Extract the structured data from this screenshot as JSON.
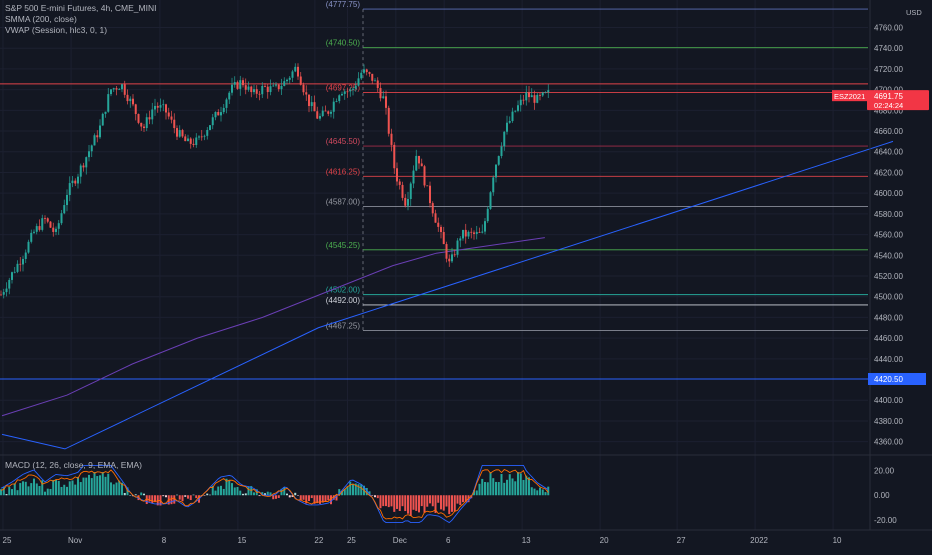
{
  "chart_data": {
    "type": "candlestick",
    "symbol_line": "S&P 500 E-mini Futures, 4h, CME_MINI",
    "indicators": [
      "SMMA (200, close)",
      "VWAP (Session, hlc3, 0, 1)"
    ],
    "currency": "USD",
    "price_axis": {
      "ylim": [
        4350,
        4780
      ],
      "ticks": [
        4760,
        4740,
        4720,
        4700,
        4680,
        4660,
        4640,
        4620,
        4600,
        4580,
        4560,
        4540,
        4520,
        4500,
        4480,
        4460,
        4440,
        4400,
        4380,
        4360
      ],
      "tick_labels": [
        "4760.00",
        "4740.00",
        "4720.00",
        "4700.00",
        "4680.00",
        "4660.00",
        "4640.00",
        "4620.00",
        "4600.00",
        "4580.00",
        "4560.00",
        "4540.00",
        "4520.00",
        "4500.00",
        "4480.00",
        "4460.00",
        "4440.00",
        "4400.00",
        "4380.00",
        "4360.00"
      ]
    },
    "time_axis": {
      "labels": [
        "25",
        "Nov",
        "8",
        "15",
        "22",
        "25",
        "Dec",
        "6",
        "13",
        "20",
        "27",
        "2022",
        "10"
      ],
      "label_slot": [
        0.1,
        7,
        16,
        23.9,
        31.7,
        35,
        39.9,
        44.8,
        52.7,
        60.6,
        68.4,
        76.3,
        84.2
      ]
    },
    "fib_levels": [
      {
        "label": "(4777.75)",
        "value": 4777.75,
        "color": "#5b6fb8",
        "text_color": "#8a94c8"
      },
      {
        "label": "(4740.50)",
        "value": 4740.5,
        "color": "#4caf50",
        "text_color": "#4caf50"
      },
      {
        "label": "(4697.25)",
        "value": 4697.25,
        "color": "#e0434a",
        "text_color": "#e0434a"
      },
      {
        "label": "(4645.50)",
        "value": 4645.5,
        "color": "#a02d48",
        "text_color": "#d24a5f"
      },
      {
        "label": "(4616.25)",
        "value": 4616.25,
        "color": "#e0434a",
        "text_color": "#e0434a"
      },
      {
        "label": "(4587.00)",
        "value": 4587.0,
        "color": "#8a8e99",
        "text_color": "#9598a1"
      },
      {
        "label": "(4545.25)",
        "value": 4545.25,
        "color": "#4caf50",
        "text_color": "#4caf50"
      },
      {
        "label": "(4502.00)",
        "value": 4502.0,
        "color": "#26a69a",
        "text_color": "#26a69a"
      },
      {
        "label": "(4492.00)",
        "value": 4492.0,
        "color": "#d1d4dc",
        "text_color": "#d1d4dc"
      },
      {
        "label": "(4467.25)",
        "value": 4467.25,
        "color": "#8a8e99",
        "text_color": "#9598a1"
      }
    ],
    "horizontal_levels": [
      {
        "value": 4705.5,
        "color": "#e0434a"
      },
      {
        "value": 4420.5,
        "color": "#2962ff",
        "label": "4420.50"
      }
    ],
    "price_tag": {
      "symbol": "ESZ2021",
      "price": "4691.75",
      "countdown": "02:24:24",
      "color": "#f23645"
    },
    "close_series_keypoints": [
      [
        0,
        4502
      ],
      [
        1,
        4522
      ],
      [
        2,
        4540
      ],
      [
        3,
        4562
      ],
      [
        4,
        4575
      ],
      [
        5,
        4560
      ],
      [
        6,
        4600
      ],
      [
        7,
        4618
      ],
      [
        8,
        4640
      ],
      [
        9,
        4662
      ],
      [
        10,
        4700
      ],
      [
        11,
        4705
      ],
      [
        12,
        4685
      ],
      [
        13,
        4662
      ],
      [
        14,
        4685
      ],
      [
        15,
        4680
      ],
      [
        16,
        4660
      ],
      [
        17,
        4648
      ],
      [
        18,
        4650
      ],
      [
        19,
        4666
      ],
      [
        20,
        4680
      ],
      [
        21,
        4700
      ],
      [
        22,
        4708
      ],
      [
        23,
        4695
      ],
      [
        24,
        4702
      ],
      [
        25,
        4700
      ],
      [
        26,
        4708
      ],
      [
        27,
        4722
      ],
      [
        28,
        4690
      ],
      [
        29,
        4672
      ],
      [
        30,
        4680
      ],
      [
        31,
        4700
      ],
      [
        32,
        4698
      ],
      [
        33,
        4718
      ],
      [
        34,
        4710
      ],
      [
        35,
        4690
      ],
      [
        36,
        4620
      ],
      [
        37,
        4590
      ],
      [
        38,
        4640
      ],
      [
        39,
        4600
      ],
      [
        40,
        4565
      ],
      [
        41,
        4530
      ],
      [
        42,
        4560
      ],
      [
        43,
        4560
      ],
      [
        44,
        4560
      ],
      [
        45,
        4620
      ],
      [
        46,
        4660
      ],
      [
        47,
        4680
      ],
      [
        48,
        4695
      ],
      [
        49,
        4690
      ],
      [
        50,
        4696
      ]
    ],
    "smma_200": [
      [
        0,
        4385
      ],
      [
        6,
        4405
      ],
      [
        12,
        4435
      ],
      [
        18,
        4460
      ],
      [
        24,
        4480
      ],
      [
        30,
        4505
      ],
      [
        36,
        4530
      ],
      [
        40,
        4542
      ],
      [
        44,
        4548
      ],
      [
        48,
        4554
      ],
      [
        50,
        4557
      ]
    ],
    "trendline": [
      [
        0,
        4367
      ],
      [
        3,
        4353
      ],
      [
        50,
        4600
      ],
      [
        68,
        4640
      ]
    ],
    "macd": {
      "legend": "MACD (12, 26, close, 9, EMA, EMA)",
      "ylim": [
        -28,
        30
      ],
      "ticks": [
        20,
        0,
        -20
      ],
      "tick_labels": [
        "20.00",
        "0.00",
        "-20.00"
      ]
    }
  }
}
